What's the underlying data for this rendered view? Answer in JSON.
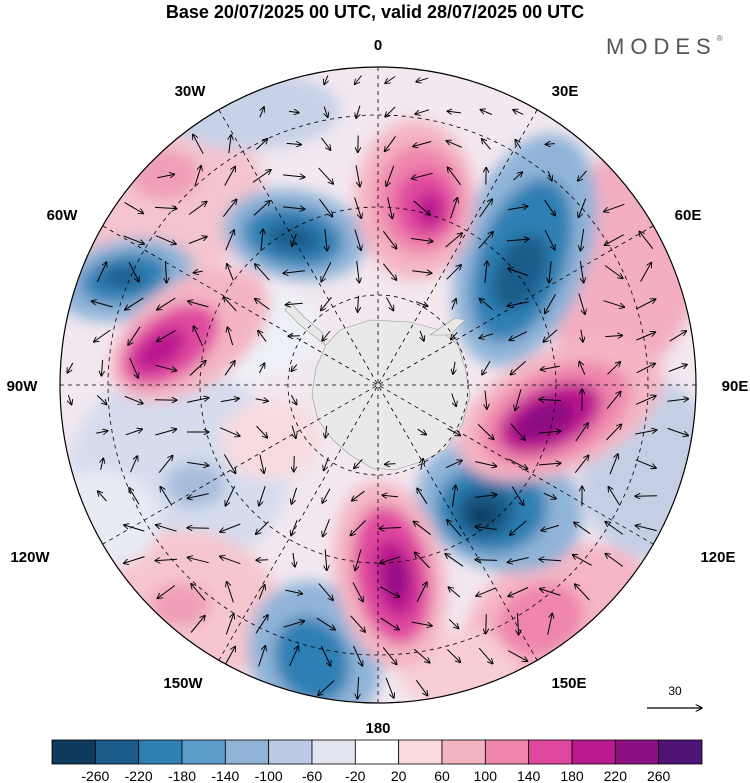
{
  "title": "Base 20/07/2025 00 UTC, valid 28/07/2025 00 UTC",
  "brand": {
    "name": "MODES",
    "mark": "®"
  },
  "map": {
    "projection": "south polar stereographic",
    "longitude_labels": {
      "top": "0",
      "bottom": "180",
      "left": "90W",
      "right": "90E",
      "upper_left_1": "30W",
      "upper_left_2": "60W",
      "lower_left_1": "120W",
      "lower_left_2": "150W",
      "upper_right_1": "30E",
      "upper_right_2": "60E",
      "lower_right_1": "120E",
      "lower_right_2": "150E"
    },
    "vector_reference": "30"
  },
  "colorbar": {
    "colors": [
      "#0e3b5e",
      "#1c5c8a",
      "#2f7fb3",
      "#5a9dc9",
      "#8fb4d8",
      "#bccbe3",
      "#e3e4f1",
      "#ffffff",
      "#f9dadd",
      "#f4b5c3",
      "#ef86ad",
      "#e0489f",
      "#bb198f",
      "#8a1082",
      "#4f1476"
    ],
    "labels": [
      "-260",
      "-220",
      "-180",
      "-140",
      "-100",
      "-60",
      "-20",
      "20",
      "60",
      "100",
      "140",
      "180",
      "220",
      "260"
    ]
  },
  "colors": {
    "antarctica": "#e9e9e9",
    "frame": "#000000"
  }
}
